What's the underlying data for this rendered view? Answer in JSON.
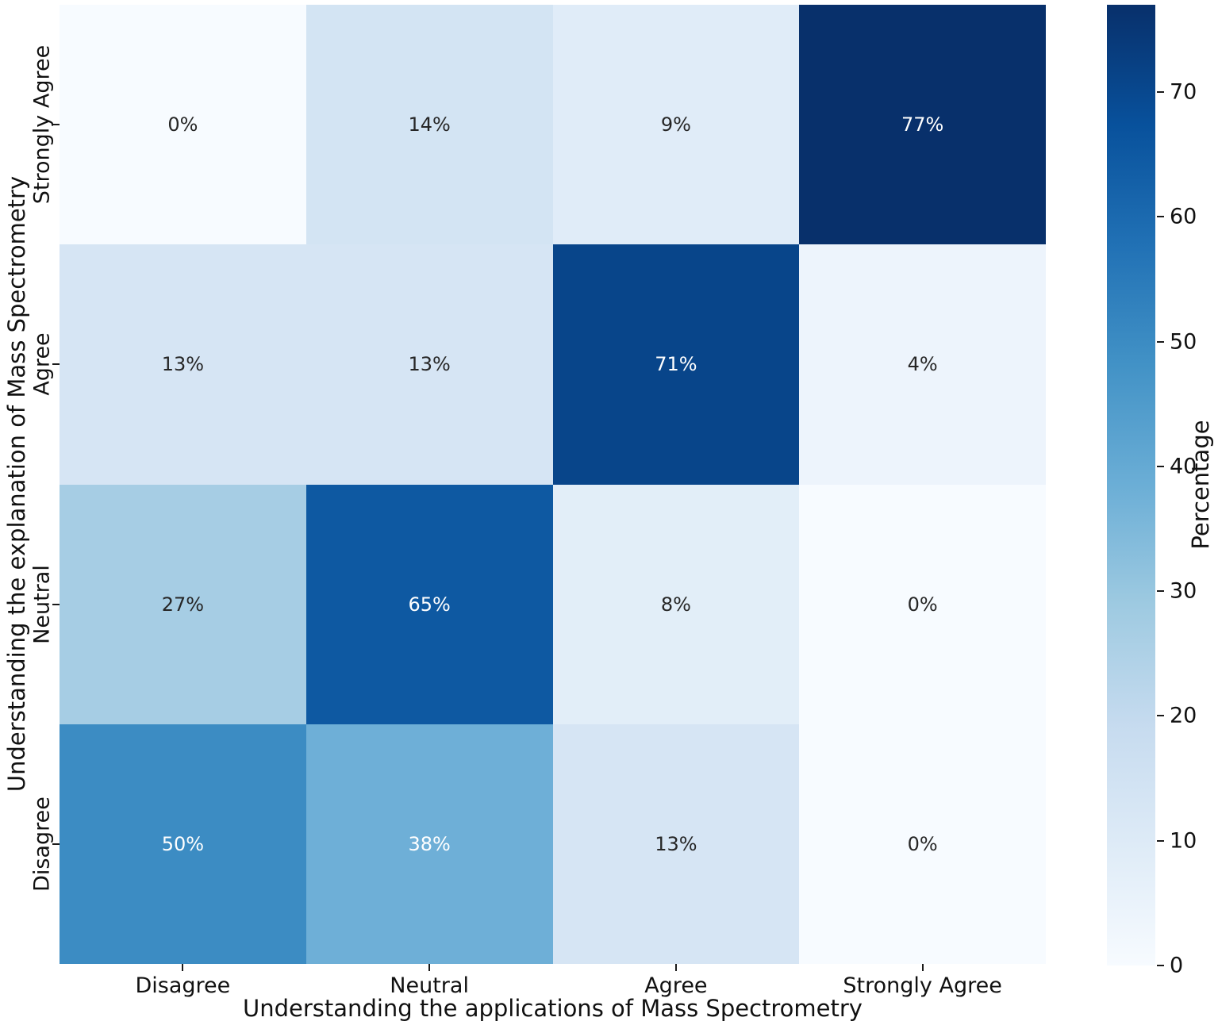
{
  "chart_data": {
    "type": "heatmap",
    "xlabel": "Understanding the applications of Mass Spectrometry",
    "ylabel": "Understanding the explanation of Mass Spectrometry",
    "x_categories": [
      "Disagree",
      "Neutral",
      "Agree",
      "Strongly Agree"
    ],
    "y_categories": [
      "Strongly Agree",
      "Agree",
      "Neutral",
      "Disagree"
    ],
    "values": [
      [
        0,
        14,
        9,
        77
      ],
      [
        13,
        13,
        71,
        4
      ],
      [
        27,
        65,
        8,
        0
      ],
      [
        50,
        38,
        13,
        0
      ]
    ],
    "cell_labels": [
      [
        "0%",
        "14%",
        "9%",
        "77%"
      ],
      [
        "13%",
        "13%",
        "71%",
        "4%"
      ],
      [
        "27%",
        "65%",
        "8%",
        "0%"
      ],
      [
        "50%",
        "38%",
        "13%",
        "0%"
      ]
    ],
    "vmin": 0,
    "vmax": 77,
    "colormap": "Blues",
    "colormap_stops": [
      "#f7fbff",
      "#deebf7",
      "#c6dbef",
      "#9ecae1",
      "#6baed6",
      "#4292c6",
      "#2171b5",
      "#08519c",
      "#08306b"
    ],
    "annotation_colors": {
      "light": "#ffffff",
      "dark": "#262626"
    },
    "axis_text_color": "#111111",
    "colorbar": {
      "label": "Percentage",
      "ticks": [
        0,
        10,
        20,
        30,
        40,
        50,
        60,
        70
      ]
    },
    "legend_position": "right-colorbar",
    "grid": false
  }
}
